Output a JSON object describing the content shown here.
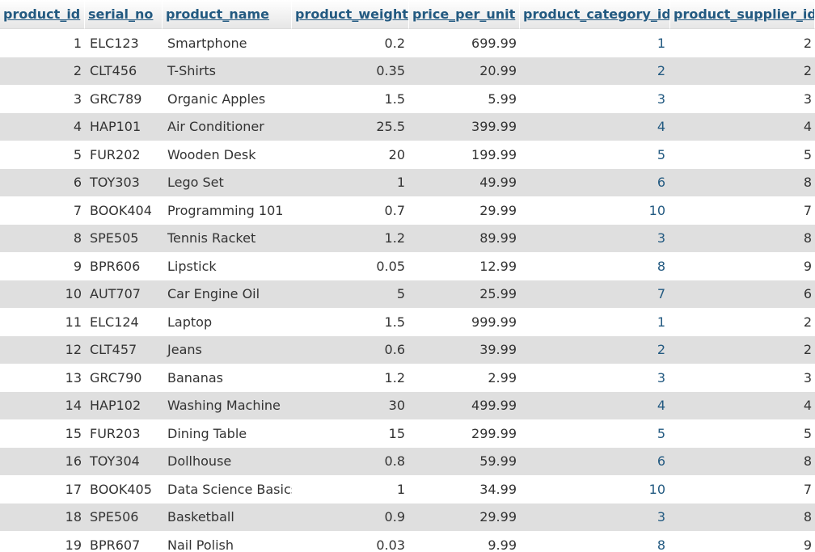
{
  "columns": [
    "product_id",
    "serial_no",
    "product_name",
    "product_weight",
    "price_per_unit",
    "product_category_id",
    "product_supplier_id"
  ],
  "rows": [
    [
      "1",
      "ELC123",
      "Smartphone",
      "0.2",
      "699.99",
      "1",
      "2"
    ],
    [
      "2",
      "CLT456",
      "T-Shirts",
      "0.35",
      "20.99",
      "2",
      "2"
    ],
    [
      "3",
      "GRC789",
      "Organic Apples",
      "1.5",
      "5.99",
      "3",
      "3"
    ],
    [
      "4",
      "HAP101",
      "Air Conditioner",
      "25.5",
      "399.99",
      "4",
      "4"
    ],
    [
      "5",
      "FUR202",
      "Wooden Desk",
      "20",
      "199.99",
      "5",
      "5"
    ],
    [
      "6",
      "TOY303",
      "Lego Set",
      "1",
      "49.99",
      "6",
      "8"
    ],
    [
      "7",
      "BOOK404",
      "Programming 101",
      "0.7",
      "29.99",
      "10",
      "7"
    ],
    [
      "8",
      "SPE505",
      "Tennis Racket",
      "1.2",
      "89.99",
      "3",
      "8"
    ],
    [
      "9",
      "BPR606",
      "Lipstick",
      "0.05",
      "12.99",
      "8",
      "9"
    ],
    [
      "10",
      "AUT707",
      "Car Engine Oil",
      "5",
      "25.99",
      "7",
      "6"
    ],
    [
      "11",
      "ELC124",
      "Laptop",
      "1.5",
      "999.99",
      "1",
      "2"
    ],
    [
      "12",
      "CLT457",
      "Jeans",
      "0.6",
      "39.99",
      "2",
      "2"
    ],
    [
      "13",
      "GRC790",
      "Bananas",
      "1.2",
      "2.99",
      "3",
      "3"
    ],
    [
      "14",
      "HAP102",
      "Washing Machine",
      "30",
      "499.99",
      "4",
      "4"
    ],
    [
      "15",
      "FUR203",
      "Dining Table",
      "15",
      "299.99",
      "5",
      "5"
    ],
    [
      "16",
      "TOY304",
      "Dollhouse",
      "0.8",
      "59.99",
      "6",
      "8"
    ],
    [
      "17",
      "BOOK405",
      "Data Science Basics",
      "1",
      "34.99",
      "10",
      "7"
    ],
    [
      "18",
      "SPE506",
      "Basketball",
      "0.9",
      "29.99",
      "3",
      "8"
    ],
    [
      "19",
      "BPR607",
      "Nail Polish",
      "0.03",
      "9.99",
      "8",
      "9"
    ]
  ],
  "colors": {
    "header_link": "#235a81",
    "cell_text": "#333333",
    "row_even": "#dfdfdf",
    "row_odd": "#ffffff"
  }
}
